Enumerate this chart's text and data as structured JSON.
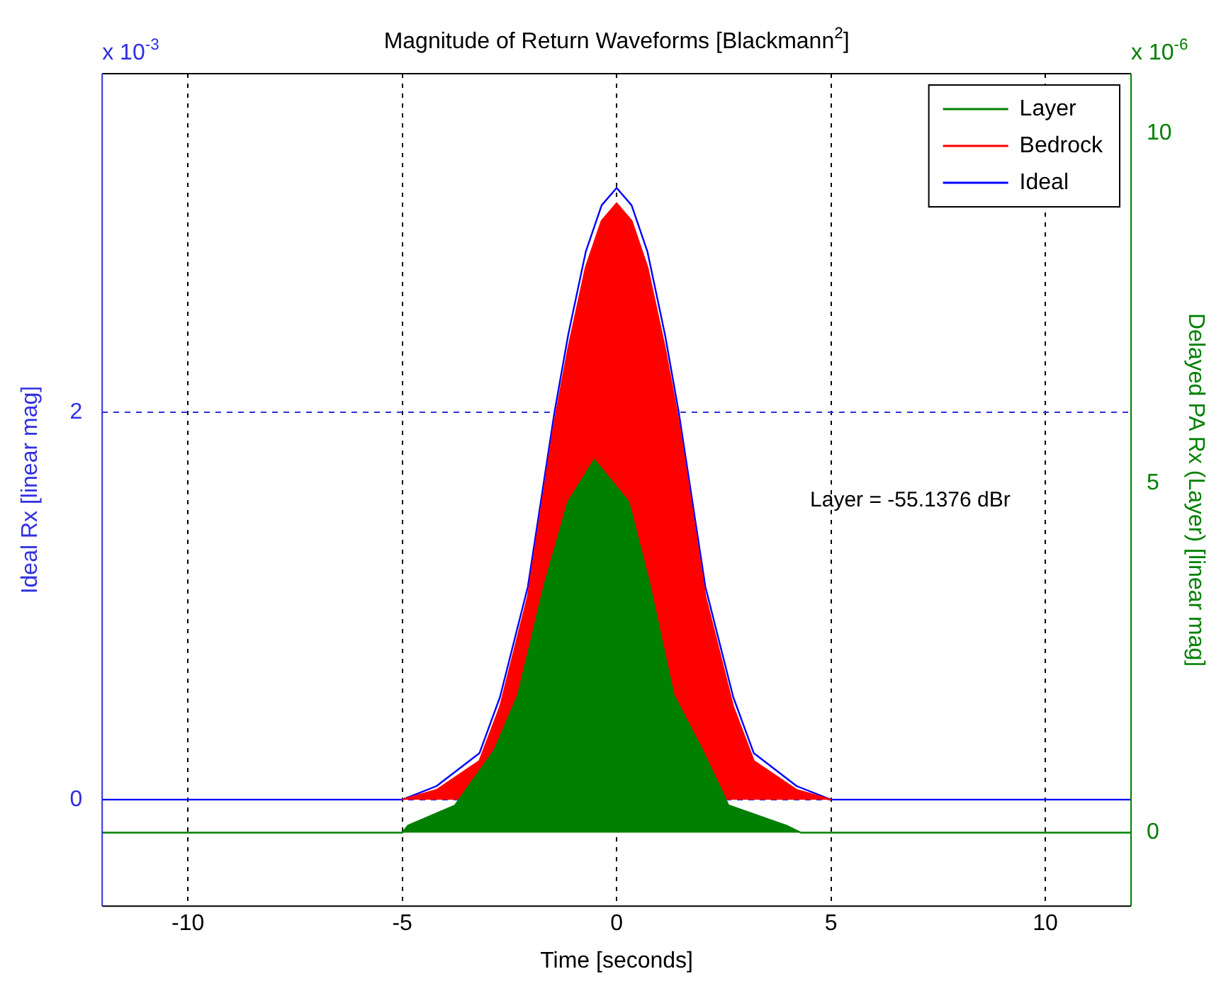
{
  "chart_data": {
    "type": "line",
    "title": "Magnitude of Return Waveforms [Blackmann$^{2}$]",
    "xlabel": "Time [seconds]",
    "ylabel": "Ideal Rx [linear mag]",
    "y2label": "Delayed PA Rx (Layer) [linear mag]",
    "annotations": [
      "Layer = -55.1376 dBr",
      "x 10$^{-3}$",
      "x 10$^{-6}$"
    ],
    "xlim": [
      -12,
      12
    ],
    "xticks": [
      -10,
      -5,
      0,
      5,
      10
    ],
    "ylim": [
      -0.55,
      3.75
    ],
    "yticks": [
      0,
      2
    ],
    "y2lim": [
      -1.05,
      10.85
    ],
    "y2ticks": [
      0,
      5,
      10
    ],
    "grid": true,
    "legend": "top right",
    "series": [
      {
        "name": "Layer",
        "type": "area",
        "axis": "y2",
        "color": "#008000",
        "x": [
          -12,
          -5,
          -4.87,
          -3.77,
          -2.85,
          -2.3,
          -1.68,
          -1.13,
          -0.52,
          0.28,
          0.77,
          1.33,
          2.0,
          2.61,
          3.96,
          4.3,
          12
        ],
        "values": [
          0,
          0,
          0.1,
          0.39,
          1.18,
          1.97,
          3.55,
          4.73,
          5.33,
          4.73,
          3.55,
          1.97,
          1.18,
          0.39,
          0.1,
          0,
          0
        ]
      },
      {
        "name": "Bedrock",
        "type": "area",
        "color": "#ff0000",
        "x": [
          -5,
          -4.2,
          -3.2,
          -2.72,
          -2.07,
          -1.45,
          -1.13,
          -0.72,
          -0.35,
          0,
          0.35,
          0.72,
          1.13,
          1.45,
          2.07,
          2.72,
          3.2,
          4.2,
          5
        ],
        "values": [
          0,
          0.05,
          0.2,
          0.48,
          1.05,
          1.95,
          2.33,
          2.75,
          2.99,
          3.08,
          2.99,
          2.75,
          2.33,
          1.95,
          1.05,
          0.48,
          0.2,
          0.05,
          0
        ]
      },
      {
        "name": "Ideal",
        "type": "line",
        "color": "#0000ff",
        "x": [
          -12,
          -5,
          -4.2,
          -3.2,
          -2.72,
          -2.07,
          -1.45,
          -1.13,
          -0.72,
          -0.35,
          0,
          0.35,
          0.72,
          1.13,
          1.45,
          2.07,
          2.72,
          3.2,
          4.2,
          5,
          12
        ],
        "values": [
          0,
          0,
          0.07,
          0.24,
          0.53,
          1.1,
          2,
          2.4,
          2.83,
          3.07,
          3.16,
          3.07,
          2.83,
          2.4,
          2,
          1.1,
          0.53,
          0.24,
          0.07,
          0,
          0
        ]
      }
    ]
  }
}
